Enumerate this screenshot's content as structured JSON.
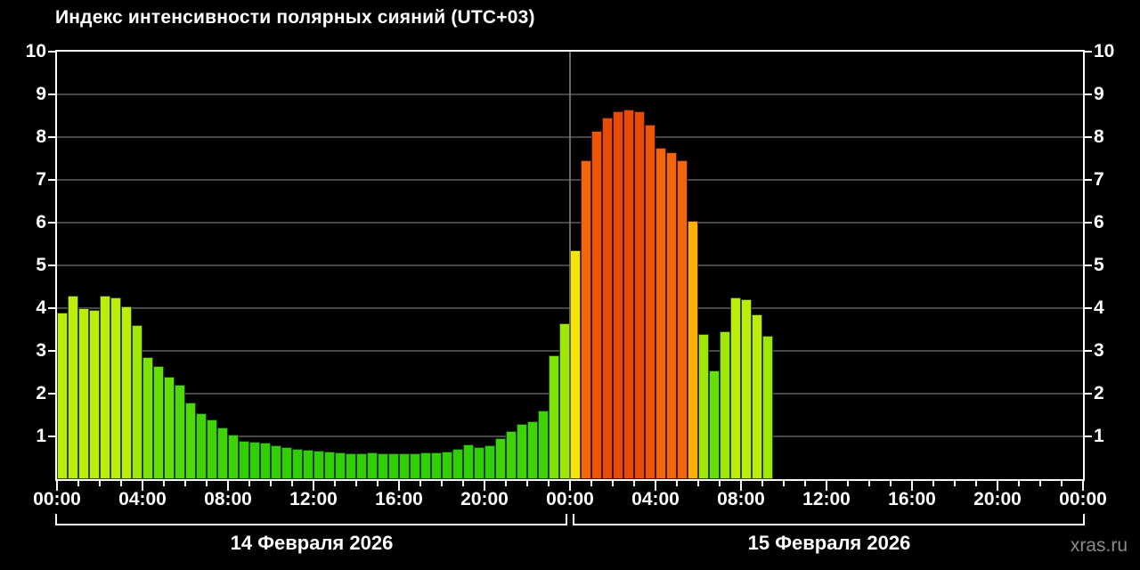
{
  "watermark": "xras.ru",
  "chart_data": {
    "type": "bar",
    "title": "Индекс интенсивности полярных сияний (UTC+03)",
    "ylabel": "",
    "xlabel": "",
    "ylim": [
      0,
      10
    ],
    "yticks": [
      1,
      2,
      3,
      4,
      5,
      6,
      7,
      8,
      9,
      10
    ],
    "grid": "horizontal",
    "x_axis": {
      "tick_labels": [
        "00:00",
        "04:00",
        "08:00",
        "12:00",
        "16:00",
        "20:00",
        "00:00",
        "04:00",
        "08:00",
        "12:00",
        "16:00",
        "20:00",
        "00:00"
      ],
      "minor_tick_every_hours": 1,
      "major_tick_every_hours": 4
    },
    "days": [
      {
        "label": "14 Февраля 2026",
        "slots": 48
      },
      {
        "label": "15 Февраля 2026",
        "slots": 48
      }
    ],
    "bar_interval_minutes": 30,
    "total_slots": 96,
    "series": [
      {
        "name": "aurora-intensity-index",
        "start_slot_time": "00:00 14 Февраля 2026",
        "values": [
          3.9,
          4.3,
          4.0,
          3.95,
          4.3,
          4.25,
          4.05,
          3.6,
          2.85,
          2.65,
          2.4,
          2.2,
          1.8,
          1.55,
          1.4,
          1.2,
          1.05,
          0.9,
          0.87,
          0.85,
          0.8,
          0.75,
          0.7,
          0.68,
          0.66,
          0.64,
          0.62,
          0.6,
          0.6,
          0.62,
          0.6,
          0.6,
          0.6,
          0.6,
          0.62,
          0.63,
          0.65,
          0.7,
          0.82,
          0.76,
          0.8,
          0.95,
          1.12,
          1.3,
          1.35,
          1.6,
          2.9,
          3.65,
          5.35,
          7.45,
          8.15,
          8.45,
          8.6,
          8.65,
          8.6,
          8.3,
          7.75,
          7.65,
          7.45,
          6.05,
          3.4,
          2.55,
          3.45,
          4.25,
          4.2,
          3.85,
          3.35
        ]
      }
    ],
    "value_color_palette": [
      {
        "min": 8.4,
        "color": "#e84b02"
      },
      {
        "min": 7.95,
        "color": "#ee5604"
      },
      {
        "min": 6.8,
        "color": "#f36709"
      },
      {
        "min": 5.7,
        "color": "#ffae02"
      },
      {
        "min": 4.8,
        "color": "#f8e303"
      },
      {
        "min": 3.8,
        "color": "#bced06"
      },
      {
        "min": 3.1,
        "color": "#9fe805"
      },
      {
        "min": 2.7,
        "color": "#7ee406"
      },
      {
        "min": 2.3,
        "color": "#65e004"
      },
      {
        "min": 1.7,
        "color": "#50da03"
      },
      {
        "min": 0.95,
        "color": "#3dd402"
      },
      {
        "min": 0,
        "color": "#2fcf01"
      }
    ],
    "colors": {
      "background": "#000000",
      "frame": "#ffffff",
      "gridline": "#484848",
      "day_separator": "#6a6a6a",
      "text": "#ffffff",
      "watermark": "#8b8b8b"
    }
  }
}
